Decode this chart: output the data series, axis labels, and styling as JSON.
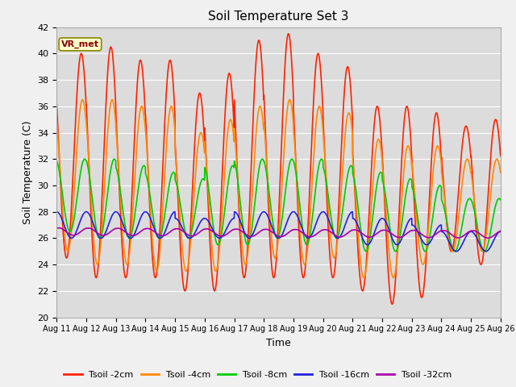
{
  "title": "Soil Temperature Set 3",
  "xlabel": "Time",
  "ylabel": "Soil Temperature (C)",
  "ylim": [
    20,
    42
  ],
  "annotation": "VR_met",
  "bg_color": "#dcdcdc",
  "fig_bg_color": "#f0f0f0",
  "x_tick_labels": [
    "Aug 11",
    "Aug 12",
    "Aug 13",
    "Aug 14",
    "Aug 15",
    "Aug 16",
    "Aug 17",
    "Aug 18",
    "Aug 19",
    "Aug 20",
    "Aug 21",
    "Aug 22",
    "Aug 23",
    "Aug 24",
    "Aug 25",
    "Aug 26"
  ],
  "series_labels": [
    "Tsoil -2cm",
    "Tsoil -4cm",
    "Tsoil -8cm",
    "Tsoil -16cm",
    "Tsoil -32cm"
  ],
  "series_colors": [
    "#ff2200",
    "#ff8800",
    "#00cc00",
    "#2222dd",
    "#aa00aa"
  ],
  "series_lw": [
    1.2,
    1.2,
    1.2,
    1.2,
    1.2
  ]
}
